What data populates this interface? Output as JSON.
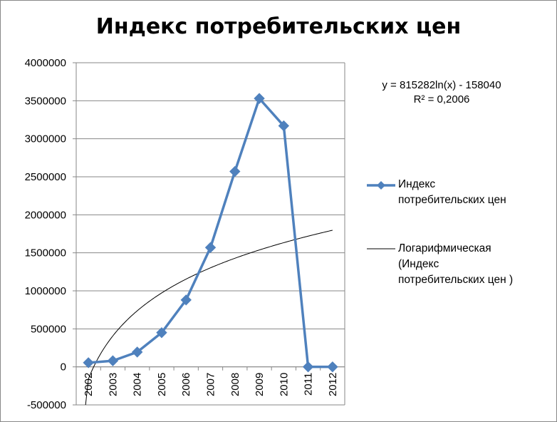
{
  "chart_data": {
    "type": "line",
    "title": "Индекс потребительских цен",
    "categories": [
      "2002",
      "2003",
      "2004",
      "2005",
      "2006",
      "2007",
      "2008",
      "2009",
      "2010",
      "2011",
      "2012"
    ],
    "series": [
      {
        "name": "Индекс потребительских цен",
        "values": [
          55000,
          80000,
          195000,
          450000,
          880000,
          1570000,
          2570000,
          3530000,
          3170000,
          0,
          0
        ],
        "color": "#4f81bd",
        "marker": "diamond"
      }
    ],
    "trendline": {
      "type": "logarithmic",
      "name": "Логарифмическая (Индекс потребительских цен )",
      "legend_lines": [
        "Логарифмическая",
        "(Индекс",
        "потребительских цен )"
      ],
      "equation": "y = 815282ln(x) - 158040",
      "r2_label": "R² = 0,2006",
      "coef_a": 815282,
      "coef_b": -158040,
      "color": "#000000"
    },
    "legend_series_lines": [
      "Индекс",
      "потребительских цен"
    ],
    "ylim": [
      -500000,
      4000000
    ],
    "yticks": [
      "-500000",
      "0",
      "500000",
      "1000000",
      "1500000",
      "2000000",
      "2500000",
      "3000000",
      "3500000",
      "4000000"
    ],
    "ytick_values": [
      -500000,
      0,
      500000,
      1000000,
      1500000,
      2000000,
      2500000,
      3000000,
      3500000,
      4000000
    ],
    "grid": true,
    "legend_position": "right",
    "xlabel": "",
    "ylabel": ""
  }
}
